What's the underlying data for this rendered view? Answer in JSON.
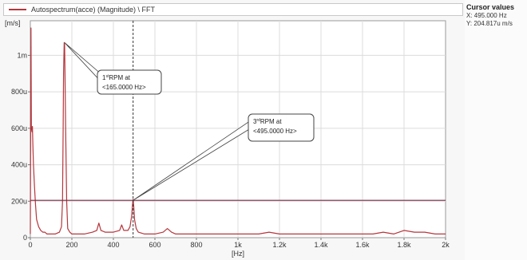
{
  "legend": {
    "series_label": "Autospectrum(acce) (Magnitude) \\ FFT",
    "series_color": "#b5363d"
  },
  "cursor_values": {
    "title": "Cursor values",
    "x_readout": "X: 495.000 Hz",
    "y_readout": "Y: 204.817u m/s"
  },
  "chart_data": {
    "type": "line",
    "ylabel": "[m/s]",
    "xlabel": "[Hz]",
    "x_tick_labels": [
      "0",
      "200",
      "400",
      "600",
      "800",
      "1k",
      "1.2k",
      "1.4k",
      "1.6k",
      "1.8k",
      "2k"
    ],
    "x_tick_values": [
      0,
      200,
      400,
      600,
      800,
      1000,
      1200,
      1400,
      1600,
      1800,
      2000
    ],
    "y_tick_labels": [
      "0",
      "200u",
      "400u",
      "600u",
      "800u",
      "1m"
    ],
    "y_tick_values": [
      0,
      0.0002,
      0.0004,
      0.0006,
      0.0008,
      0.001
    ],
    "xlim": [
      0,
      2000
    ],
    "ylim": [
      0,
      0.00119
    ],
    "grid": true,
    "cursor": {
      "x": 495,
      "y": 0.000204817,
      "line_color": "#7a2840"
    },
    "annotations": [
      {
        "line1": "1",
        "sup": "st",
        "line1_rest": "RPM  at",
        "line2": "<165.0000 Hz>",
        "target_x": 165,
        "target_y": 0.00107
      },
      {
        "line1": "3",
        "sup": "rd",
        "line1_rest": "RPM at",
        "line2": "<495.0000 Hz>",
        "target_x": 495,
        "target_y": 0.000205
      }
    ],
    "series": [
      {
        "color": "#b5363d",
        "x": [
          0,
          3,
          5,
          8,
          10,
          12,
          15,
          20,
          25,
          30,
          40,
          50,
          60,
          70,
          80,
          100,
          120,
          140,
          150,
          155,
          158,
          160,
          163,
          165,
          167,
          170,
          175,
          180,
          190,
          200,
          230,
          260,
          300,
          320,
          330,
          340,
          360,
          400,
          430,
          440,
          450,
          470,
          480,
          488,
          492,
          495,
          498,
          502,
          510,
          520,
          550,
          600,
          640,
          660,
          680,
          700,
          760,
          800,
          860,
          900,
          1000,
          1050,
          1100,
          1150,
          1200,
          1260,
          1300,
          1400,
          1450,
          1500,
          1560,
          1600,
          1650,
          1700,
          1750,
          1800,
          1850,
          1900,
          1950,
          2000
        ],
        "y": [
          2e-05,
          0.00115,
          0.0006,
          0.00058,
          0.00061,
          0.00052,
          0.0004,
          0.00028,
          0.00018,
          0.0001,
          6e-05,
          4e-05,
          3e-05,
          3e-05,
          2e-05,
          2e-05,
          2e-05,
          3e-05,
          6e-05,
          0.0002,
          0.0006,
          0.0009,
          0.00107,
          0.00106,
          0.0009,
          0.0006,
          0.0002,
          5e-05,
          3e-05,
          2e-05,
          2e-05,
          2e-05,
          3e-05,
          4e-05,
          8e-05,
          4e-05,
          3e-05,
          3e-05,
          4e-05,
          7e-05,
          4e-05,
          4e-05,
          6e-05,
          0.00012,
          0.00018,
          0.00021,
          0.00017,
          0.0001,
          5e-05,
          3e-05,
          2e-05,
          2e-05,
          3e-05,
          5e-05,
          3e-05,
          2e-05,
          2e-05,
          2e-05,
          2e-05,
          2e-05,
          2e-05,
          2e-05,
          2e-05,
          3e-05,
          2e-05,
          2e-05,
          2e-05,
          2e-05,
          2e-05,
          2e-05,
          2e-05,
          2e-05,
          2e-05,
          3e-05,
          2e-05,
          4e-05,
          3e-05,
          3e-05,
          2e-05,
          2e-05
        ]
      }
    ]
  }
}
